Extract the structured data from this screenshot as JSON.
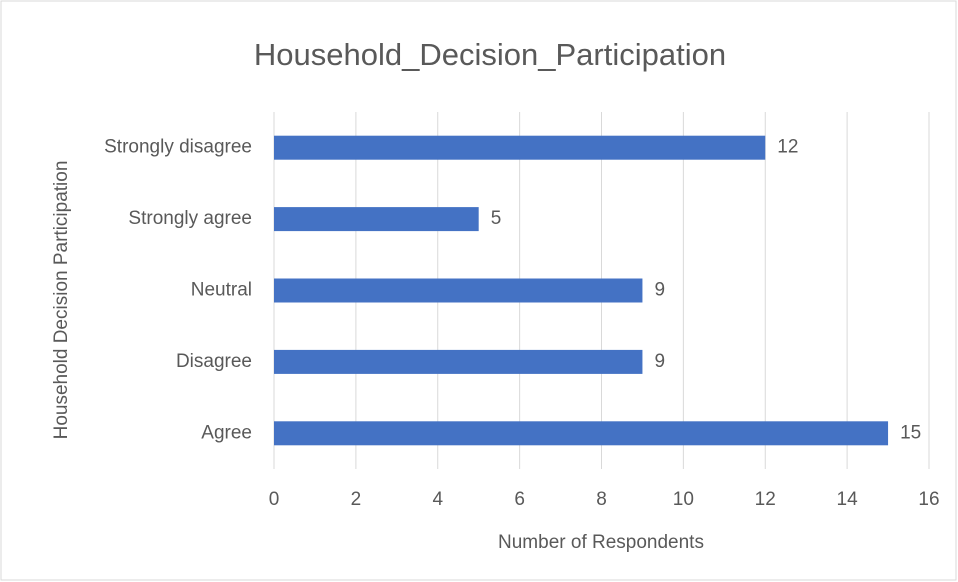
{
  "chart_data": {
    "type": "bar",
    "orientation": "horizontal",
    "title": "Household_Decision_Participation",
    "x_label": "Number of Respondents",
    "y_label": "Household Decision Participation",
    "categories": [
      "Agree",
      "Disagree",
      "Neutral",
      "Strongly agree",
      "Strongly disagree"
    ],
    "values": [
      15,
      9,
      9,
      5,
      12
    ],
    "color": "#4472c4",
    "xlim": [
      0,
      16
    ],
    "xticks": [
      0,
      2,
      4,
      6,
      8,
      10,
      12,
      14,
      16
    ],
    "grid": true
  }
}
